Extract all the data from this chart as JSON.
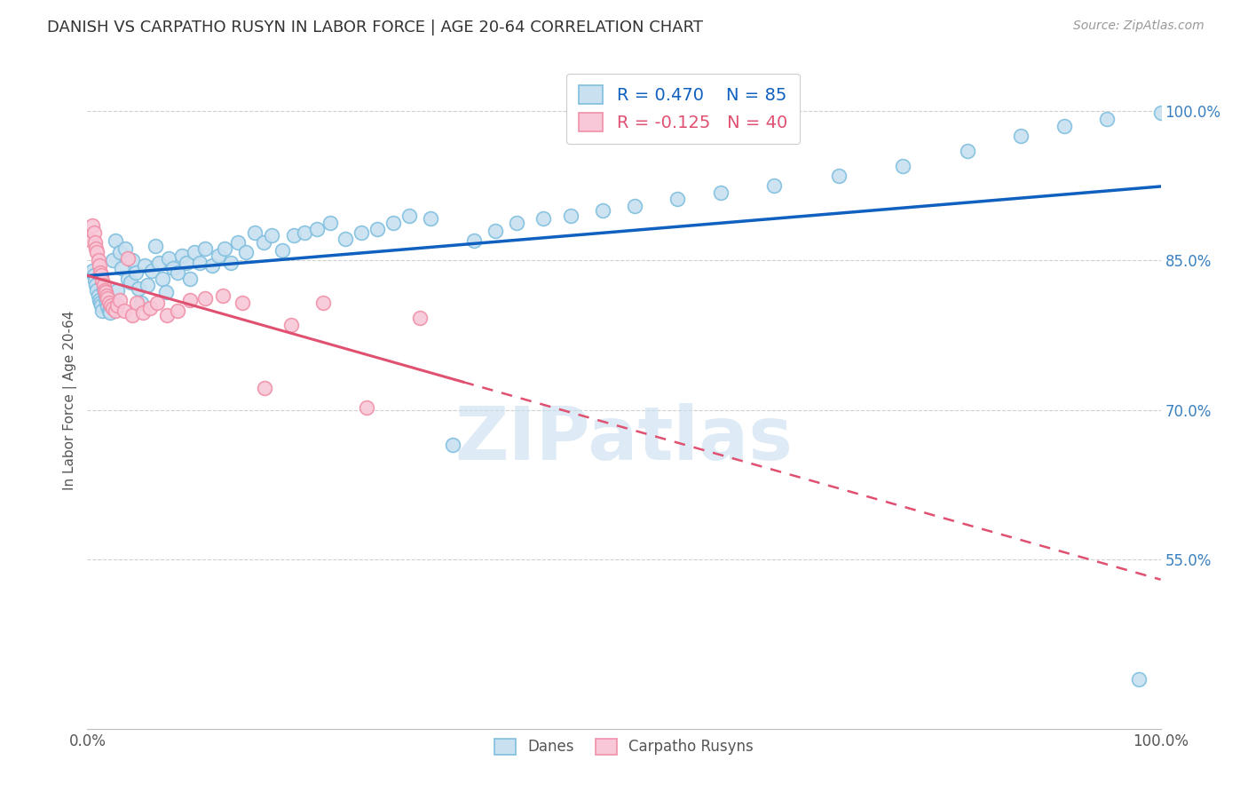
{
  "title": "DANISH VS CARPATHO RUSYN IN LABOR FORCE | AGE 20-64 CORRELATION CHART",
  "source": "Source: ZipAtlas.com",
  "ylabel": "In Labor Force | Age 20-64",
  "xlim": [
    0.0,
    1.0
  ],
  "ylim": [
    0.38,
    1.04
  ],
  "x_ticks": [
    0.0,
    0.2,
    0.4,
    0.6,
    0.8,
    1.0
  ],
  "x_tick_labels": [
    "0.0%",
    "",
    "",
    "",
    "",
    "100.0%"
  ],
  "y_tick_labels_right": [
    "100.0%",
    "85.0%",
    "70.0%",
    "55.0%"
  ],
  "y_tick_positions_right": [
    1.0,
    0.85,
    0.7,
    0.55
  ],
  "legend_r1": "R = 0.470",
  "legend_n1": "N = 85",
  "legend_r2": "R = -0.125",
  "legend_n2": "N = 40",
  "blue_color": "#7fbfdf",
  "blue_fill": "#c8e0f0",
  "pink_color": "#f090a8",
  "pink_fill": "#f8c8d8",
  "line_blue": "#1060c0",
  "line_pink": "#e05070",
  "grid_color": "#d0d0d0",
  "watermark": "ZIPatlas",
  "danes_x": [
    0.005,
    0.006,
    0.007,
    0.008,
    0.009,
    0.01,
    0.011,
    0.012,
    0.013,
    0.014,
    0.015,
    0.016,
    0.017,
    0.018,
    0.019,
    0.02,
    0.021,
    0.022,
    0.024,
    0.026,
    0.028,
    0.03,
    0.032,
    0.035,
    0.038,
    0.04,
    0.042,
    0.045,
    0.048,
    0.05,
    0.053,
    0.056,
    0.06,
    0.063,
    0.067,
    0.07,
    0.073,
    0.076,
    0.08,
    0.084,
    0.088,
    0.092,
    0.096,
    0.1,
    0.105,
    0.11,
    0.116,
    0.122,
    0.128,
    0.134,
    0.14,
    0.148,
    0.156,
    0.164,
    0.172,
    0.182,
    0.192,
    0.202,
    0.214,
    0.226,
    0.24,
    0.255,
    0.27,
    0.285,
    0.3,
    0.32,
    0.34,
    0.36,
    0.38,
    0.4,
    0.425,
    0.45,
    0.48,
    0.51,
    0.55,
    0.59,
    0.64,
    0.7,
    0.76,
    0.82,
    0.87,
    0.91,
    0.95,
    0.98,
    1.0
  ],
  "danes_y": [
    0.84,
    0.835,
    0.83,
    0.825,
    0.82,
    0.815,
    0.81,
    0.808,
    0.805,
    0.8,
    0.822,
    0.818,
    0.812,
    0.808,
    0.804,
    0.8,
    0.798,
    0.81,
    0.85,
    0.87,
    0.82,
    0.858,
    0.842,
    0.862,
    0.832,
    0.828,
    0.85,
    0.838,
    0.822,
    0.808,
    0.845,
    0.825,
    0.84,
    0.865,
    0.848,
    0.832,
    0.818,
    0.852,
    0.842,
    0.838,
    0.855,
    0.848,
    0.832,
    0.858,
    0.848,
    0.862,
    0.845,
    0.855,
    0.862,
    0.848,
    0.868,
    0.858,
    0.878,
    0.868,
    0.875,
    0.86,
    0.875,
    0.878,
    0.882,
    0.888,
    0.872,
    0.878,
    0.882,
    0.888,
    0.895,
    0.892,
    0.665,
    0.87,
    0.88,
    0.888,
    0.892,
    0.895,
    0.9,
    0.905,
    0.912,
    0.918,
    0.925,
    0.935,
    0.945,
    0.96,
    0.975,
    0.985,
    0.992,
    0.43,
    0.998
  ],
  "rusyn_x": [
    0.004,
    0.005,
    0.006,
    0.007,
    0.008,
    0.009,
    0.01,
    0.011,
    0.012,
    0.013,
    0.014,
    0.015,
    0.016,
    0.017,
    0.018,
    0.019,
    0.02,
    0.022,
    0.024,
    0.026,
    0.028,
    0.03,
    0.034,
    0.038,
    0.042,
    0.046,
    0.052,
    0.058,
    0.065,
    0.074,
    0.084,
    0.096,
    0.11,
    0.126,
    0.144,
    0.165,
    0.19,
    0.22,
    0.26,
    0.31
  ],
  "rusyn_y": [
    0.87,
    0.885,
    0.878,
    0.868,
    0.862,
    0.858,
    0.85,
    0.845,
    0.838,
    0.835,
    0.83,
    0.825,
    0.82,
    0.818,
    0.815,
    0.812,
    0.808,
    0.805,
    0.802,
    0.8,
    0.805,
    0.81,
    0.8,
    0.852,
    0.795,
    0.808,
    0.798,
    0.802,
    0.808,
    0.795,
    0.8,
    0.81,
    0.812,
    0.815,
    0.808,
    0.722,
    0.785,
    0.808,
    0.702,
    0.792
  ]
}
